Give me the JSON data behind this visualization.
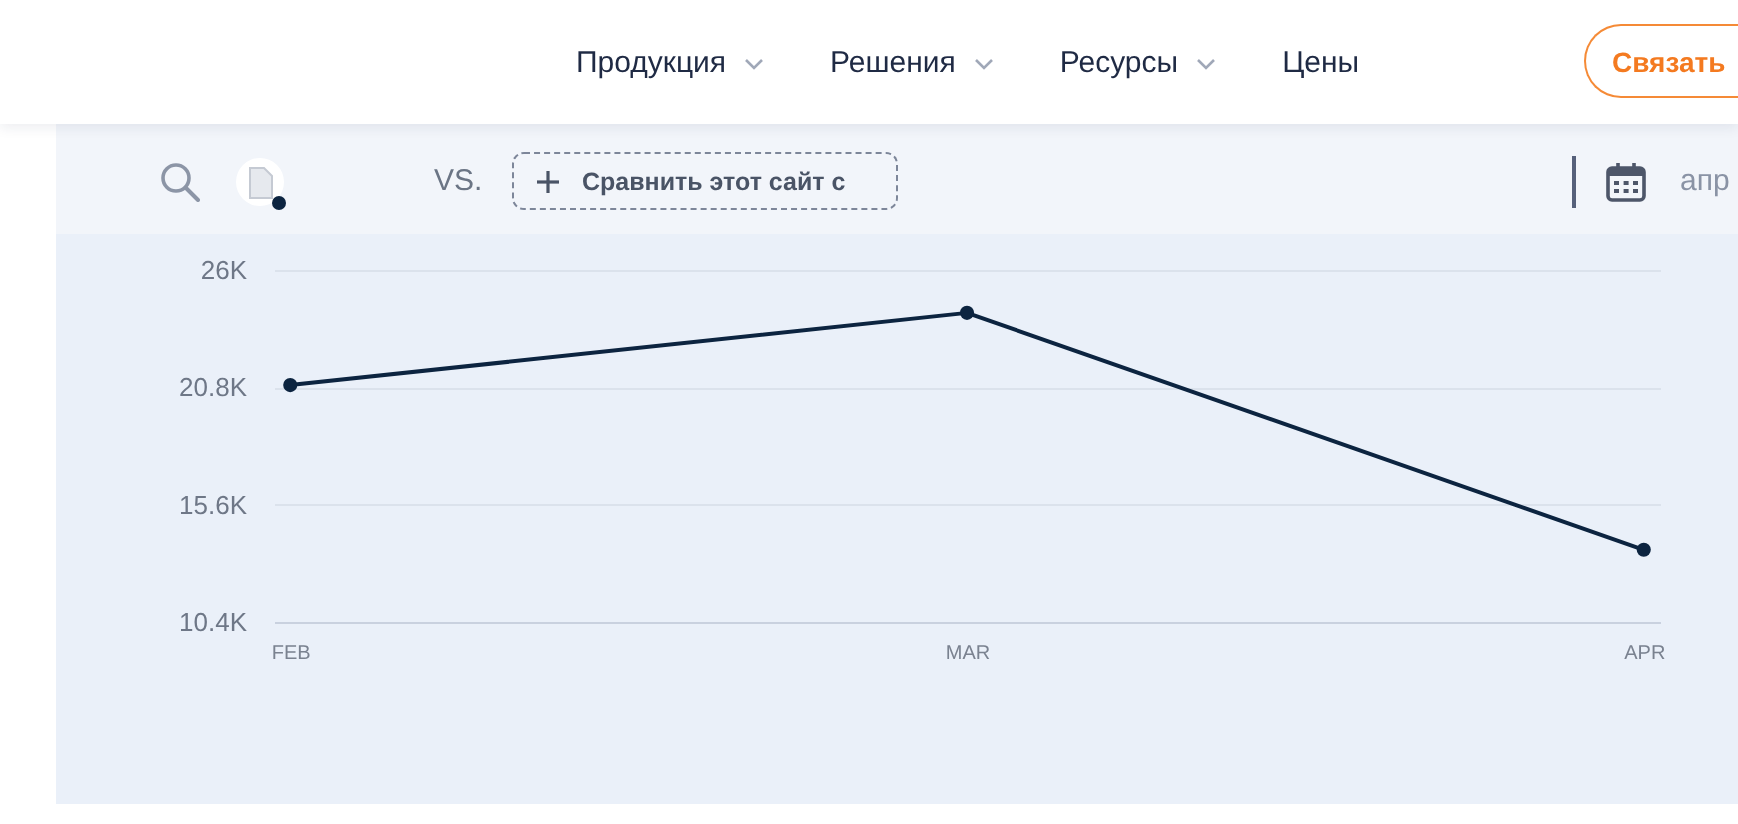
{
  "chart_data": {
    "type": "line",
    "categories": [
      "FEB",
      "MAR",
      "APR"
    ],
    "series": [
      {
        "color": "#0c2440",
        "values": [
          20900,
          24100,
          13600
        ]
      }
    ],
    "ylim": [
      10400,
      26000
    ],
    "yticks": [
      {
        "value": 10400,
        "label": "10.4K"
      },
      {
        "value": 15600,
        "label": "15.6K"
      },
      {
        "value": 20800,
        "label": "20.8K"
      },
      {
        "value": 26000,
        "label": "26K"
      }
    ],
    "grid": "y",
    "marker": "circle",
    "line_style": "solid",
    "annotations": [
      "Продукция",
      "Решения",
      "Ресурсы",
      "Цены",
      "Связать",
      "VS.",
      "Сравнить этот сайт с",
      "апр"
    ]
  }
}
